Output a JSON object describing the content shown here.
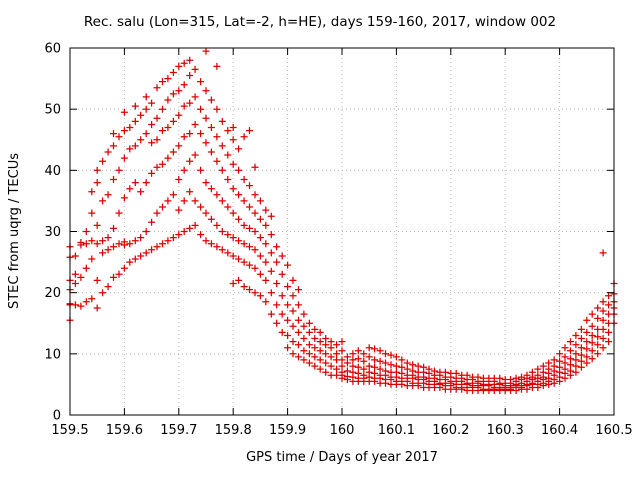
{
  "chart_data": {
    "type": "scatter",
    "title": "Rec. salu (Lon=315, Lat=-2, h=HE), days 159-160, 2017, window 002",
    "xlabel": "GPS time / Days of year 2017",
    "ylabel": "STEC from uqrg / TECUs",
    "xlim": [
      159.5,
      160.5
    ],
    "ylim": [
      0,
      60
    ],
    "xtick_values": [
      159.5,
      159.6,
      159.7,
      159.8,
      159.9,
      160.0,
      160.1,
      160.2,
      160.3,
      160.4,
      160.5
    ],
    "xtick_labels": [
      "159.5",
      "159.6",
      "159.7",
      "159.8",
      "159.9",
      "160",
      "160.1",
      "160.2",
      "160.3",
      "160.4",
      "160.5"
    ],
    "ytick_values": [
      0,
      10,
      20,
      30,
      40,
      50,
      60
    ],
    "ytick_labels": [
      "0",
      "10",
      "20",
      "30",
      "40",
      "50",
      "60"
    ],
    "grid": true,
    "legend": "none",
    "marker": "plus",
    "marker_color": "#dd0000",
    "columns": [
      [
        159.5,
        [
          15.5,
          18.0,
          18.2,
          20.5,
          22.0,
          25.8,
          27.5
        ]
      ],
      [
        159.51,
        [
          18.0,
          21.5,
          23.0,
          26.0
        ]
      ],
      [
        159.52,
        [
          17.8,
          22.5,
          27.8,
          28.2
        ]
      ],
      [
        159.53,
        [
          18.5,
          24.0,
          28.0,
          30.0
        ]
      ],
      [
        159.54,
        [
          19.0,
          25.5,
          28.5,
          33.0,
          36.5
        ]
      ],
      [
        159.55,
        [
          17.5,
          22.0,
          28.0,
          31.0,
          38.0,
          40.0
        ]
      ],
      [
        159.56,
        [
          20.0,
          26.5,
          28.5,
          35.0,
          41.5
        ]
      ],
      [
        159.57,
        [
          21.0,
          27.0,
          29.0,
          36.0,
          43.0
        ]
      ],
      [
        159.58,
        [
          22.5,
          27.5,
          30.5,
          38.5,
          44.0,
          46.0
        ]
      ],
      [
        159.59,
        [
          23.0,
          28.0,
          33.0,
          40.0,
          45.5
        ]
      ],
      [
        159.6,
        [
          24.0,
          27.8,
          28.3,
          35.5,
          42.0,
          46.5,
          49.5
        ]
      ],
      [
        159.61,
        [
          25.0,
          28.0,
          37.0,
          43.5,
          47.0
        ]
      ],
      [
        159.62,
        [
          25.5,
          28.5,
          38.0,
          44.0,
          48.0,
          50.5
        ]
      ],
      [
        159.63,
        [
          26.0,
          29.0,
          36.5,
          45.0,
          49.0
        ]
      ],
      [
        159.64,
        [
          26.5,
          30.0,
          38.0,
          46.0,
          50.0,
          52.0
        ]
      ],
      [
        159.65,
        [
          27.0,
          31.5,
          39.5,
          44.5,
          47.5,
          51.0
        ]
      ],
      [
        159.66,
        [
          27.5,
          33.0,
          40.5,
          45.0,
          48.5,
          53.5
        ]
      ],
      [
        159.67,
        [
          28.0,
          34.0,
          41.0,
          46.5,
          50.0,
          54.5
        ]
      ],
      [
        159.68,
        [
          28.5,
          35.0,
          42.0,
          47.0,
          51.5,
          55.0
        ]
      ],
      [
        159.69,
        [
          29.0,
          36.0,
          43.0,
          48.0,
          52.5,
          56.0
        ]
      ],
      [
        159.7,
        [
          29.5,
          33.5,
          38.5,
          44.0,
          49.0,
          53.0,
          57.0
        ]
      ],
      [
        159.71,
        [
          30.0,
          35.0,
          40.0,
          45.5,
          50.5,
          54.0,
          57.5
        ]
      ],
      [
        159.72,
        [
          30.5,
          36.5,
          41.5,
          46.0,
          51.0,
          55.5,
          58.0
        ]
      ],
      [
        159.73,
        [
          31.0,
          35.0,
          42.5,
          47.5,
          52.0,
          56.5
        ]
      ],
      [
        159.74,
        [
          29.5,
          34.0,
          40.0,
          46.0,
          50.0,
          54.5
        ]
      ],
      [
        159.75,
        [
          28.5,
          33.0,
          38.0,
          44.5,
          48.5,
          53.0,
          59.5
        ]
      ],
      [
        159.76,
        [
          28.0,
          32.0,
          37.0,
          43.0,
          47.0,
          51.5
        ]
      ],
      [
        159.77,
        [
          27.5,
          31.0,
          36.0,
          41.5,
          45.5,
          50.0,
          57.0
        ]
      ],
      [
        159.78,
        [
          27.0,
          30.0,
          35.0,
          40.0,
          44.0,
          48.0
        ]
      ],
      [
        159.79,
        [
          26.5,
          29.5,
          34.0,
          38.5,
          42.5,
          46.5
        ]
      ],
      [
        159.8,
        [
          21.5,
          26.0,
          29.0,
          33.0,
          37.0,
          41.0,
          45.0,
          47.0
        ]
      ],
      [
        159.81,
        [
          22.0,
          25.5,
          28.5,
          32.0,
          36.0,
          40.0,
          43.5
        ]
      ],
      [
        159.82,
        [
          21.0,
          25.0,
          28.0,
          31.0,
          35.0,
          38.5,
          45.5
        ]
      ],
      [
        159.83,
        [
          20.5,
          24.5,
          27.5,
          30.5,
          34.0,
          37.5,
          46.5
        ]
      ],
      [
        159.84,
        [
          20.0,
          24.0,
          27.0,
          30.0,
          33.0,
          36.0,
          40.5
        ]
      ],
      [
        159.85,
        [
          19.5,
          23.0,
          26.0,
          29.0,
          32.0,
          35.0
        ]
      ],
      [
        159.86,
        [
          18.5,
          22.0,
          25.0,
          28.0,
          31.0,
          33.5
        ]
      ],
      [
        159.87,
        [
          16.5,
          20.0,
          23.5,
          26.5,
          29.5,
          32.5
        ]
      ],
      [
        159.88,
        [
          15.0,
          18.0,
          21.5,
          25.0,
          27.5
        ]
      ],
      [
        159.89,
        [
          13.5,
          16.5,
          19.5,
          23.0,
          26.0
        ]
      ],
      [
        159.9,
        [
          11.0,
          13.0,
          15.5,
          18.0,
          21.0,
          24.5
        ]
      ],
      [
        159.91,
        [
          10.0,
          12.0,
          14.5,
          17.0,
          19.5,
          22.0
        ]
      ],
      [
        159.92,
        [
          9.5,
          11.5,
          13.5,
          15.5,
          18.0,
          20.5
        ]
      ],
      [
        159.93,
        [
          9.0,
          10.5,
          12.5,
          14.5,
          16.5
        ]
      ],
      [
        159.94,
        [
          8.5,
          10.0,
          11.5,
          13.5,
          15.0
        ]
      ],
      [
        159.95,
        [
          8.0,
          9.5,
          11.0,
          12.5,
          14.0
        ]
      ],
      [
        159.96,
        [
          7.5,
          9.0,
          10.5,
          12.0,
          13.5
        ]
      ],
      [
        159.97,
        [
          7.0,
          8.5,
          10.0,
          11.5,
          12.5
        ]
      ],
      [
        159.98,
        [
          6.5,
          8.0,
          9.5,
          11.0,
          12.0
        ]
      ],
      [
        159.99,
        [
          6.5,
          7.5,
          9.0,
          10.0,
          11.5
        ]
      ],
      [
        160.0,
        [
          6.0,
          6.5,
          7.0,
          8.0,
          9.0,
          10.5,
          12.0
        ]
      ],
      [
        160.01,
        [
          5.8,
          6.3,
          7.2,
          8.5,
          9.5
        ]
      ],
      [
        160.02,
        [
          5.5,
          6.2,
          7.0,
          8.0,
          9.0,
          10.0
        ]
      ],
      [
        160.03,
        [
          5.5,
          6.0,
          6.8,
          7.8,
          9.2,
          10.5
        ]
      ],
      [
        160.04,
        [
          5.5,
          6.0,
          6.5,
          7.5,
          8.8,
          10.0
        ]
      ],
      [
        160.05,
        [
          5.5,
          6.2,
          7.0,
          8.0,
          9.5,
          11.0
        ]
      ],
      [
        160.06,
        [
          5.5,
          6.0,
          6.8,
          7.8,
          9.0,
          10.8
        ]
      ],
      [
        160.07,
        [
          5.2,
          6.0,
          6.5,
          7.5,
          8.8,
          10.5
        ]
      ],
      [
        160.08,
        [
          5.2,
          5.8,
          6.5,
          7.2,
          8.5,
          10.0
        ]
      ],
      [
        160.09,
        [
          5.0,
          5.8,
          6.2,
          7.0,
          8.2,
          9.8
        ]
      ],
      [
        160.1,
        [
          5.0,
          5.5,
          6.2,
          7.0,
          8.0,
          9.5
        ]
      ],
      [
        160.11,
        [
          5.0,
          5.5,
          6.0,
          6.8,
          7.8,
          9.0
        ]
      ],
      [
        160.12,
        [
          4.8,
          5.5,
          6.0,
          6.5,
          7.5,
          8.5
        ]
      ],
      [
        160.13,
        [
          4.8,
          5.2,
          6.0,
          6.5,
          7.2,
          8.2
        ]
      ],
      [
        160.14,
        [
          4.8,
          5.2,
          5.8,
          6.2,
          7.0,
          8.0
        ]
      ],
      [
        160.15,
        [
          4.5,
          5.2,
          5.8,
          6.2,
          7.0,
          7.8
        ]
      ],
      [
        160.16,
        [
          4.5,
          5.0,
          5.5,
          6.0,
          6.8,
          7.5
        ]
      ],
      [
        160.17,
        [
          4.5,
          5.0,
          5.5,
          6.0,
          6.5,
          7.2
        ]
      ],
      [
        160.18,
        [
          4.5,
          5.0,
          5.2,
          5.8,
          6.5,
          7.0
        ]
      ],
      [
        160.19,
        [
          4.2,
          4.8,
          5.2,
          5.8,
          6.2,
          7.0
        ]
      ],
      [
        160.2,
        [
          4.2,
          4.8,
          5.2,
          5.5,
          6.2,
          6.8
        ]
      ],
      [
        160.21,
        [
          4.2,
          4.5,
          5.0,
          5.5,
          6.0,
          6.8
        ]
      ],
      [
        160.22,
        [
          4.2,
          4.5,
          5.0,
          5.5,
          6.0,
          6.5
        ]
      ],
      [
        160.23,
        [
          4.0,
          4.5,
          5.0,
          5.2,
          5.8,
          6.5
        ]
      ],
      [
        160.24,
        [
          4.0,
          4.5,
          4.8,
          5.2,
          5.8,
          6.2
        ]
      ],
      [
        160.25,
        [
          4.0,
          4.5,
          4.8,
          5.2,
          5.5,
          6.2
        ]
      ],
      [
        160.26,
        [
          4.0,
          4.2,
          4.8,
          5.0,
          5.5,
          6.0
        ]
      ],
      [
        160.27,
        [
          4.0,
          4.2,
          4.8,
          5.0,
          5.5,
          6.0
        ]
      ],
      [
        160.28,
        [
          4.0,
          4.2,
          4.5,
          5.0,
          5.5,
          6.0
        ]
      ],
      [
        160.29,
        [
          4.0,
          4.2,
          4.5,
          5.0,
          5.2,
          6.0
        ]
      ],
      [
        160.3,
        [
          4.0,
          4.2,
          4.5,
          4.8,
          5.2,
          5.8
        ]
      ],
      [
        160.31,
        [
          4.0,
          4.2,
          4.5,
          4.8,
          5.2,
          5.8
        ]
      ],
      [
        160.32,
        [
          4.0,
          4.5,
          4.8,
          5.0,
          5.5,
          6.0
        ]
      ],
      [
        160.33,
        [
          4.2,
          4.5,
          4.8,
          5.2,
          5.8,
          6.2
        ]
      ],
      [
        160.34,
        [
          4.2,
          4.8,
          5.0,
          5.5,
          6.0,
          6.5
        ]
      ],
      [
        160.35,
        [
          4.5,
          5.0,
          5.2,
          5.8,
          6.2,
          7.0
        ]
      ],
      [
        160.36,
        [
          4.5,
          5.0,
          5.5,
          6.0,
          6.5,
          7.5
        ]
      ],
      [
        160.37,
        [
          4.8,
          5.2,
          5.8,
          6.2,
          7.0,
          8.0
        ]
      ],
      [
        160.38,
        [
          5.0,
          5.5,
          6.0,
          6.8,
          7.5,
          8.5
        ]
      ],
      [
        160.39,
        [
          5.2,
          5.8,
          6.5,
          7.2,
          8.0,
          9.0
        ]
      ],
      [
        160.4,
        [
          5.5,
          6.2,
          7.0,
          7.8,
          8.8,
          10.0
        ]
      ],
      [
        160.41,
        [
          6.0,
          6.8,
          7.5,
          8.5,
          9.5,
          11.0
        ]
      ],
      [
        160.42,
        [
          6.5,
          7.2,
          8.2,
          9.2,
          10.5,
          12.0
        ]
      ],
      [
        160.43,
        [
          7.0,
          8.0,
          9.0,
          10.0,
          11.5,
          13.0
        ]
      ],
      [
        160.44,
        [
          7.8,
          8.8,
          9.8,
          11.0,
          12.5,
          14.0
        ]
      ],
      [
        160.45,
        [
          8.5,
          9.5,
          10.8,
          12.0,
          13.5,
          15.5
        ]
      ],
      [
        160.46,
        [
          9.2,
          10.5,
          11.8,
          13.0,
          14.5,
          16.5
        ]
      ],
      [
        160.47,
        [
          10.0,
          11.5,
          12.8,
          14.0,
          15.8,
          17.5
        ]
      ],
      [
        160.48,
        [
          11.0,
          12.5,
          14.0,
          15.5,
          17.0,
          18.5,
          26.5
        ]
      ],
      [
        160.49,
        [
          12.0,
          13.5,
          15.0,
          16.5,
          18.0,
          19.5
        ]
      ],
      [
        160.5,
        [
          15.0,
          16.5,
          17.5,
          18.5,
          19.8,
          21.5
        ]
      ]
    ]
  }
}
